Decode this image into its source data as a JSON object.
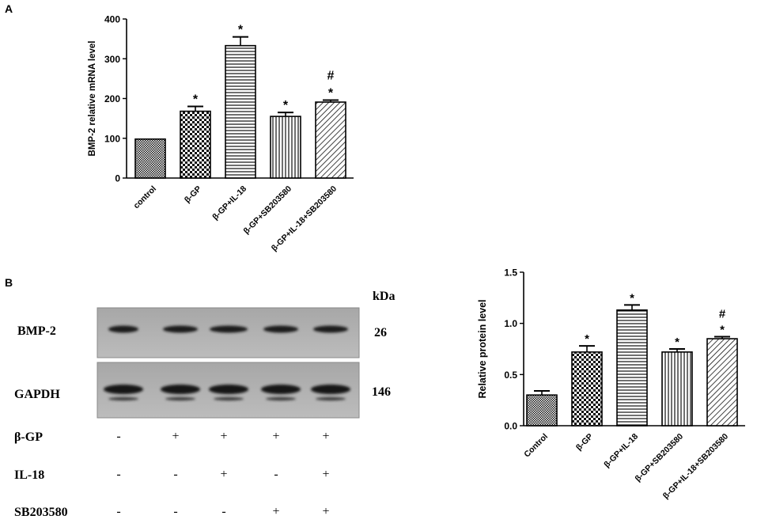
{
  "panel_a": {
    "label": "A"
  },
  "panel_b": {
    "label": "B",
    "blot": {
      "kda_label": "kDa",
      "rows": [
        {
          "protein": "BMP-2",
          "kda": "26"
        },
        {
          "protein": "GAPDH",
          "kda": "146"
        }
      ],
      "treatments": [
        {
          "name": "β-GP",
          "signs": [
            "-",
            "+",
            "+",
            "+",
            "+"
          ]
        },
        {
          "name": "IL-18",
          "signs": [
            "-",
            "-",
            "+",
            "-",
            "+"
          ]
        },
        {
          "name": "SB203580",
          "signs": [
            "-",
            "-",
            "-",
            "+",
            "+"
          ]
        }
      ]
    }
  },
  "chart_data": [
    {
      "type": "bar",
      "panel": "A",
      "ylabel": "BMP-2 relative mRNA level",
      "ylim": [
        0,
        400
      ],
      "yticks": [
        "0",
        "100",
        "200",
        "300",
        "400"
      ],
      "categories": [
        "control",
        "β-GP",
        "β-GP+IL-18",
        "β-GP+SB203580",
        "β-GP+IL-18+SB203580"
      ],
      "values": [
        98,
        168,
        333,
        155,
        191
      ],
      "errors": [
        0,
        12,
        22,
        10,
        5
      ],
      "annotations": [
        "",
        "*",
        "*",
        "*",
        "#\n*"
      ],
      "patterns": [
        "dense-check",
        "checker",
        "horizontal",
        "vertical",
        "diagonal"
      ]
    },
    {
      "type": "bar",
      "panel": "B",
      "ylabel": "Relative protein level",
      "ylim": [
        0,
        1.5
      ],
      "yticks": [
        "0.0",
        "0.5",
        "1.0",
        "1.5"
      ],
      "categories": [
        "Control",
        "β-GP",
        "β-GP+IL-18",
        "β-GP+SB203580",
        "β-GP+IL-18+SB203580"
      ],
      "values": [
        0.3,
        0.72,
        1.13,
        0.72,
        0.85
      ],
      "errors": [
        0.04,
        0.06,
        0.05,
        0.03,
        0.02
      ],
      "annotations": [
        "",
        "*",
        "*",
        "*",
        "#\n*"
      ],
      "patterns": [
        "dense-check",
        "checker",
        "horizontal",
        "vertical",
        "diagonal"
      ]
    }
  ]
}
